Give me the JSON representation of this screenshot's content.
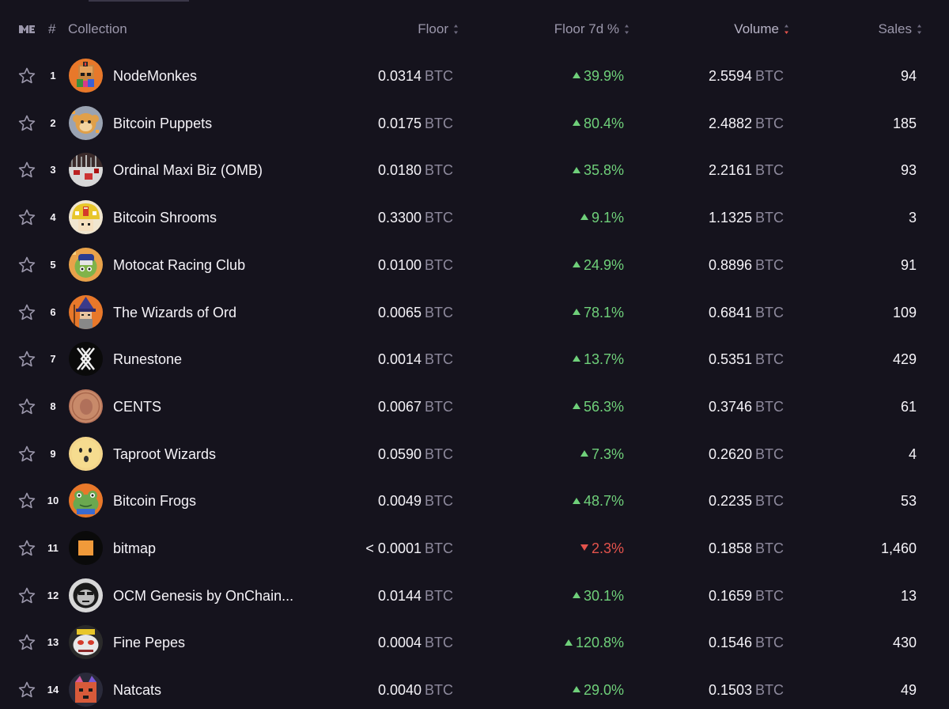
{
  "header": {
    "rank_label": "#",
    "collection_label": "Collection",
    "floor_label": "Floor",
    "floor7d_label": "Floor 7d %",
    "volume_label": "Volume",
    "sales_label": "Sales"
  },
  "colors": {
    "background": "#15131d",
    "up": "#6fd07a",
    "down": "#e4534c",
    "muted": "#8d899c",
    "active_sort": "#e4534c"
  },
  "rows": [
    {
      "rank": "1",
      "name": "NodeMonkes",
      "floor": "0.0314",
      "unit": "BTC",
      "change": "39.9%",
      "dir": "up",
      "volume": "2.5594",
      "sales": "94",
      "icon": "nodemonkes-avatar"
    },
    {
      "rank": "2",
      "name": "Bitcoin Puppets",
      "floor": "0.0175",
      "unit": "BTC",
      "change": "80.4%",
      "dir": "up",
      "volume": "2.4882",
      "sales": "185",
      "icon": "bitcoin-puppets-avatar"
    },
    {
      "rank": "3",
      "name": "Ordinal Maxi Biz (OMB)",
      "floor": "0.0180",
      "unit": "BTC",
      "change": "35.8%",
      "dir": "up",
      "volume": "2.2161",
      "sales": "93",
      "icon": "omb-avatar"
    },
    {
      "rank": "4",
      "name": "Bitcoin Shrooms",
      "floor": "0.3300",
      "unit": "BTC",
      "change": "9.1%",
      "dir": "up",
      "volume": "1.1325",
      "sales": "3",
      "icon": "bitcoin-shrooms-avatar"
    },
    {
      "rank": "5",
      "name": "Motocat Racing Club",
      "floor": "0.0100",
      "unit": "BTC",
      "change": "24.9%",
      "dir": "up",
      "volume": "0.8896",
      "sales": "91",
      "icon": "motocat-avatar"
    },
    {
      "rank": "6",
      "name": "The Wizards of Ord",
      "floor": "0.0065",
      "unit": "BTC",
      "change": "78.1%",
      "dir": "up",
      "volume": "0.6841",
      "sales": "109",
      "icon": "wizards-of-ord-avatar"
    },
    {
      "rank": "7",
      "name": "Runestone",
      "floor": "0.0014",
      "unit": "BTC",
      "change": "13.7%",
      "dir": "up",
      "volume": "0.5351",
      "sales": "429",
      "icon": "runestone-avatar"
    },
    {
      "rank": "8",
      "name": "CENTS",
      "floor": "0.0067",
      "unit": "BTC",
      "change": "56.3%",
      "dir": "up",
      "volume": "0.3746",
      "sales": "61",
      "icon": "cents-avatar"
    },
    {
      "rank": "9",
      "name": "Taproot Wizards",
      "floor": "0.0590",
      "unit": "BTC",
      "change": "7.3%",
      "dir": "up",
      "volume": "0.2620",
      "sales": "4",
      "icon": "taproot-wizards-avatar"
    },
    {
      "rank": "10",
      "name": "Bitcoin Frogs",
      "floor": "0.0049",
      "unit": "BTC",
      "change": "48.7%",
      "dir": "up",
      "volume": "0.2235",
      "sales": "53",
      "icon": "bitcoin-frogs-avatar"
    },
    {
      "rank": "11",
      "name": "bitmap",
      "floor": "< 0.0001",
      "unit": "BTC",
      "change": "2.3%",
      "dir": "down",
      "volume": "0.1858",
      "sales": "1,460",
      "icon": "bitmap-avatar"
    },
    {
      "rank": "12",
      "name": "OCM Genesis by OnChain...",
      "floor": "0.0144",
      "unit": "BTC",
      "change": "30.1%",
      "dir": "up",
      "volume": "0.1659",
      "sales": "13",
      "icon": "ocm-genesis-avatar"
    },
    {
      "rank": "13",
      "name": "Fine Pepes",
      "floor": "0.0004",
      "unit": "BTC",
      "change": "120.8%",
      "dir": "up",
      "volume": "0.1546",
      "sales": "430",
      "icon": "fine-pepes-avatar"
    },
    {
      "rank": "14",
      "name": "Natcats",
      "floor": "0.0040",
      "unit": "BTC",
      "change": "29.0%",
      "dir": "up",
      "volume": "0.1503",
      "sales": "49",
      "icon": "natcats-avatar"
    }
  ]
}
